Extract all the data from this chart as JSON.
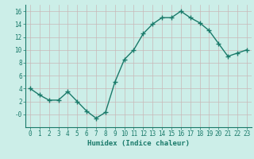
{
  "x": [
    0,
    1,
    2,
    3,
    4,
    5,
    6,
    7,
    8,
    9,
    10,
    11,
    12,
    13,
    14,
    15,
    16,
    17,
    18,
    19,
    20,
    21,
    22,
    23
  ],
  "y": [
    4,
    3,
    2.2,
    2.2,
    3.5,
    2,
    0.5,
    -0.6,
    0.3,
    5,
    8.5,
    10,
    12.5,
    14,
    15,
    15,
    16,
    15,
    14.2,
    13,
    11,
    9,
    9.5,
    10
  ],
  "line_color": "#1a7a6a",
  "marker": "+",
  "marker_size": 4,
  "marker_lw": 1.0,
  "line_width": 1.0,
  "bg_color": "#cceee8",
  "grid_color": "#c8b8b8",
  "xlabel": "Humidex (Indice chaleur)",
  "ylim": [
    -2,
    17
  ],
  "xlim": [
    -0.5,
    23.5
  ],
  "yticks": [
    0,
    2,
    4,
    6,
    8,
    10,
    12,
    14,
    16
  ],
  "ytick_labels": [
    "-0",
    "2",
    "4",
    "6",
    "8",
    "10",
    "12",
    "14",
    "16"
  ],
  "xticks": [
    0,
    1,
    2,
    3,
    4,
    5,
    6,
    7,
    8,
    9,
    10,
    11,
    12,
    13,
    14,
    15,
    16,
    17,
    18,
    19,
    20,
    21,
    22,
    23
  ],
  "axis_color": "#1a7a6a",
  "tick_color": "#1a7a6a",
  "label_color": "#1a7a6a",
  "font_size_label": 6.5,
  "font_size_tick": 5.5
}
